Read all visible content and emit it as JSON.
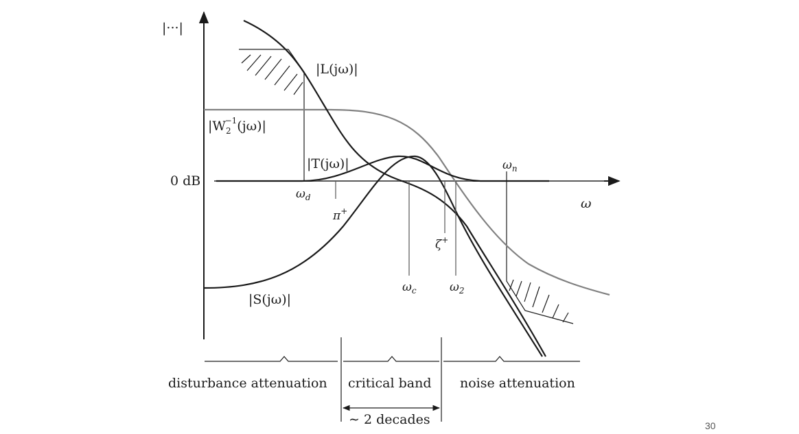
{
  "axes": {
    "y_label": "|···|",
    "x_label": "ω",
    "zero_db_label": "0 dB"
  },
  "curves": {
    "L": "|L(jω)|",
    "W2inv": "|W",
    "W2inv_sub": "2",
    "W2inv_sup": "−1",
    "W2inv_rest": "(jω)|",
    "T": "|T(jω)|",
    "S": "|S(jω)|"
  },
  "markers": {
    "omega_d": "ω",
    "omega_d_sub": "d",
    "pi_plus": "π",
    "pi_plus_sup": "+",
    "zeta_plus": "ζ",
    "zeta_plus_sup": "+",
    "omega_c": "ω",
    "omega_c_sub": "c",
    "omega_2": "ω",
    "omega_2_sub": "2",
    "omega_n": "ω",
    "omega_n_sub": "n"
  },
  "bands": {
    "disturbance": "disturbance attenuation",
    "critical": "critical band",
    "noise": "noise attenuation",
    "width": "∼ 2 decades"
  },
  "page_number": "30",
  "colors": {
    "ink": "#1a1a1a",
    "w2_curve": "#808080",
    "guide": "#555555"
  }
}
